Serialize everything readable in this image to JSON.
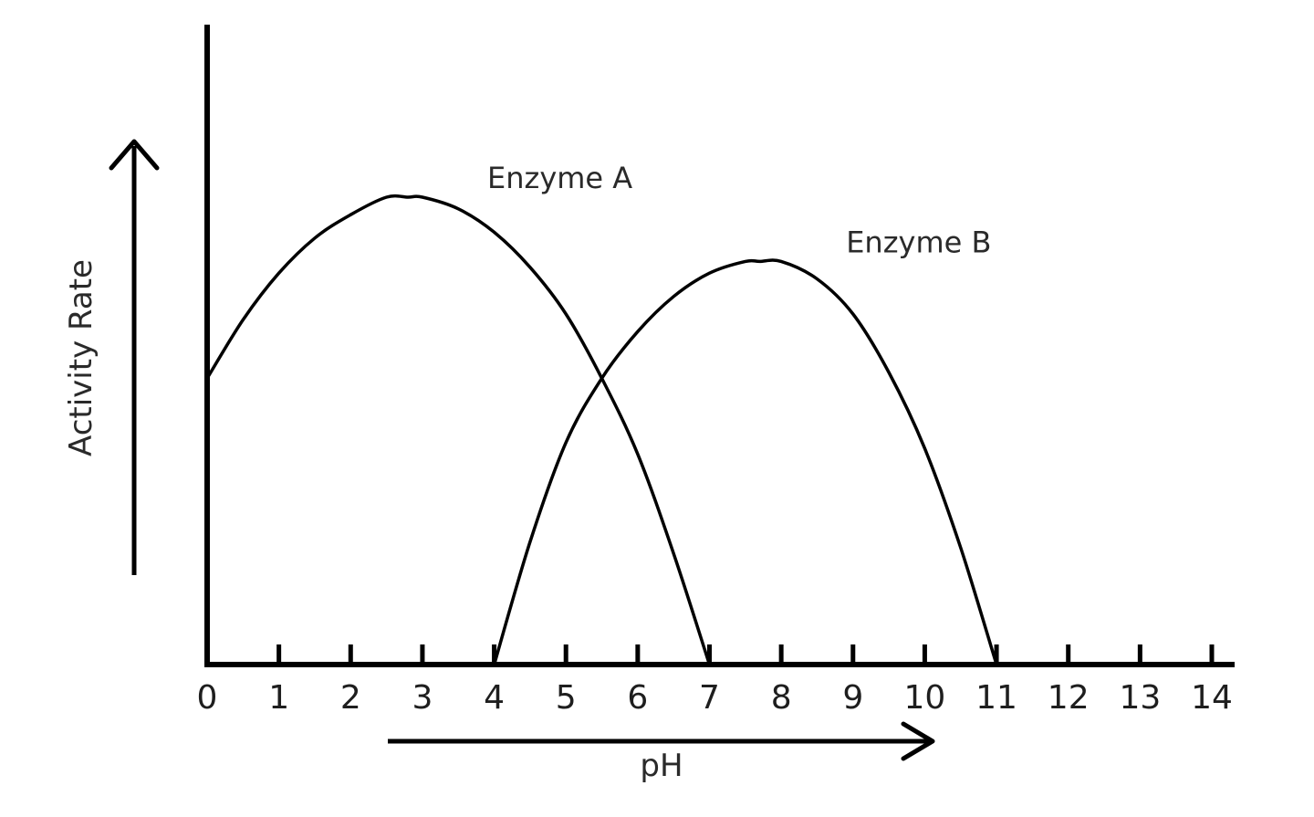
{
  "chart_data": {
    "type": "line",
    "title": "",
    "xlabel": "pH",
    "ylabel": "Activity Rate",
    "xlim": [
      0,
      14
    ],
    "x_ticks": [
      "0",
      "1",
      "2",
      "3",
      "4",
      "5",
      "6",
      "7",
      "8",
      "9",
      "10",
      "11",
      "12",
      "13",
      "14"
    ],
    "ylim": [
      0,
      1
    ],
    "y_tick_labels": false,
    "grid": false,
    "legend": "none",
    "series": [
      {
        "name": "Enzyme A",
        "x": [
          0,
          0.5,
          1,
          1.5,
          2,
          2.5,
          2.8,
          3,
          3.5,
          4,
          4.5,
          5,
          5.5,
          6,
          6.5,
          7
        ],
        "y": [
          0.49,
          0.59,
          0.67,
          0.73,
          0.77,
          0.8,
          0.8,
          0.8,
          0.78,
          0.74,
          0.68,
          0.6,
          0.49,
          0.36,
          0.19,
          0
        ]
      },
      {
        "name": "Enzyme B",
        "x": [
          4,
          4.5,
          5,
          5.5,
          6,
          6.5,
          7,
          7.5,
          7.7,
          8,
          8.5,
          9,
          9.5,
          10,
          10.5,
          11
        ],
        "y": [
          0,
          0.21,
          0.38,
          0.49,
          0.57,
          0.63,
          0.67,
          0.69,
          0.69,
          0.69,
          0.66,
          0.6,
          0.5,
          0.37,
          0.2,
          0
        ]
      }
    ]
  }
}
